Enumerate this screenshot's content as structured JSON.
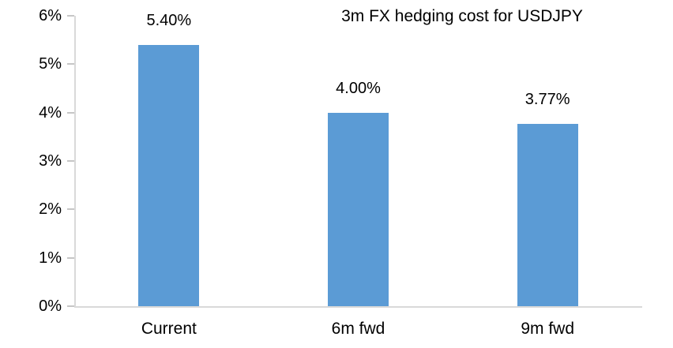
{
  "chart_data": {
    "type": "bar",
    "title": "3m FX hedging cost for USDJPY",
    "categories": [
      "Current",
      "6m fwd",
      "9m fwd"
    ],
    "values": [
      5.4,
      4.0,
      3.77
    ],
    "data_labels": [
      "5.40%",
      "4.00%",
      "3.77%"
    ],
    "xlabel": "",
    "ylabel": "",
    "ylim": [
      0,
      6
    ],
    "ytick_step": 1,
    "ytick_labels": [
      "0%",
      "1%",
      "2%",
      "3%",
      "4%",
      "5%",
      "6%"
    ],
    "grid": "off",
    "legend": "none",
    "colors": {
      "bar_fill": "#5b9bd5",
      "axis_line": "#d9d9d9",
      "tick_mark": "#c6c6c6",
      "text": "#000000",
      "background": "#ffffff"
    }
  }
}
